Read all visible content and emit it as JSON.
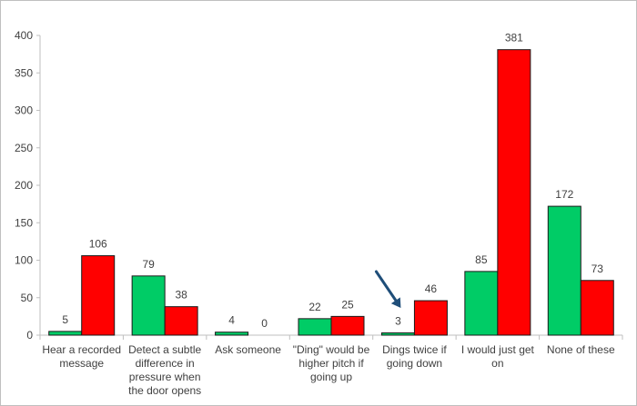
{
  "chart_data": {
    "type": "bar",
    "title": "",
    "xlabel": "",
    "ylabel": "",
    "ylim": [
      0,
      400
    ],
    "yticks": [
      0,
      50,
      100,
      150,
      200,
      250,
      300,
      350,
      400
    ],
    "grid": false,
    "legend": "none",
    "categories": [
      [
        "Hear a recorded",
        "message"
      ],
      [
        "Detect a subtle",
        "difference in",
        "pressure when",
        "the door opens"
      ],
      [
        "Ask someone"
      ],
      [
        "\"Ding\" would be",
        "higher pitch if",
        "going up"
      ],
      [
        "Dings twice if",
        "going down"
      ],
      [
        "I would just get",
        "on"
      ],
      [
        "None of these"
      ]
    ],
    "series": [
      {
        "color": "#00cc66",
        "values": [
          5,
          79,
          4,
          22,
          3,
          85,
          172
        ]
      },
      {
        "color": "#ff0000",
        "values": [
          106,
          38,
          0,
          25,
          46,
          381,
          73
        ]
      }
    ],
    "annotation": {
      "type": "arrow",
      "target_category": 4,
      "color": "#1f4e79"
    }
  }
}
